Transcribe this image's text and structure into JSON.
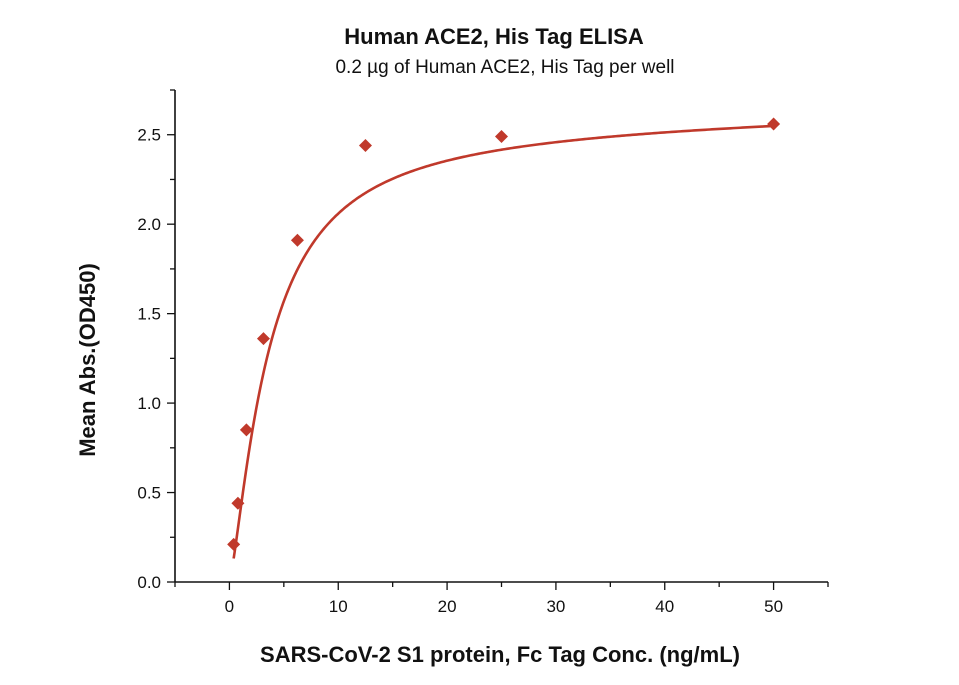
{
  "chart_data": {
    "type": "scatter",
    "title": "Human ACE2, His Tag ELISA",
    "subtitle": "0.2 µg of Human ACE2, His Tag per well",
    "xlabel": "SARS-CoV-2 S1 protein, Fc Tag Conc. (ng/mL)",
    "ylabel": "Mean Abs.(OD450)",
    "xlim": [
      -5,
      55
    ],
    "ylim": [
      0,
      2.75
    ],
    "xticks": [
      0,
      10,
      20,
      30,
      40,
      50
    ],
    "yticks": [
      0.0,
      0.5,
      1.0,
      1.5,
      2.0,
      2.5
    ],
    "xtick_labels": [
      "0",
      "10",
      "20",
      "30",
      "40",
      "50"
    ],
    "ytick_labels": [
      "0.0",
      "0.5",
      "1.0",
      "1.5",
      "2.0",
      "2.5"
    ],
    "grid": false,
    "series": [
      {
        "marker": "diamond",
        "color": "#c0392b",
        "x": [
          0.39,
          0.78,
          1.56,
          3.13,
          6.25,
          12.5,
          25,
          50
        ],
        "y": [
          0.21,
          0.44,
          0.85,
          1.36,
          1.91,
          2.44,
          2.49,
          2.56
        ],
        "fit_curve": true
      }
    ]
  }
}
